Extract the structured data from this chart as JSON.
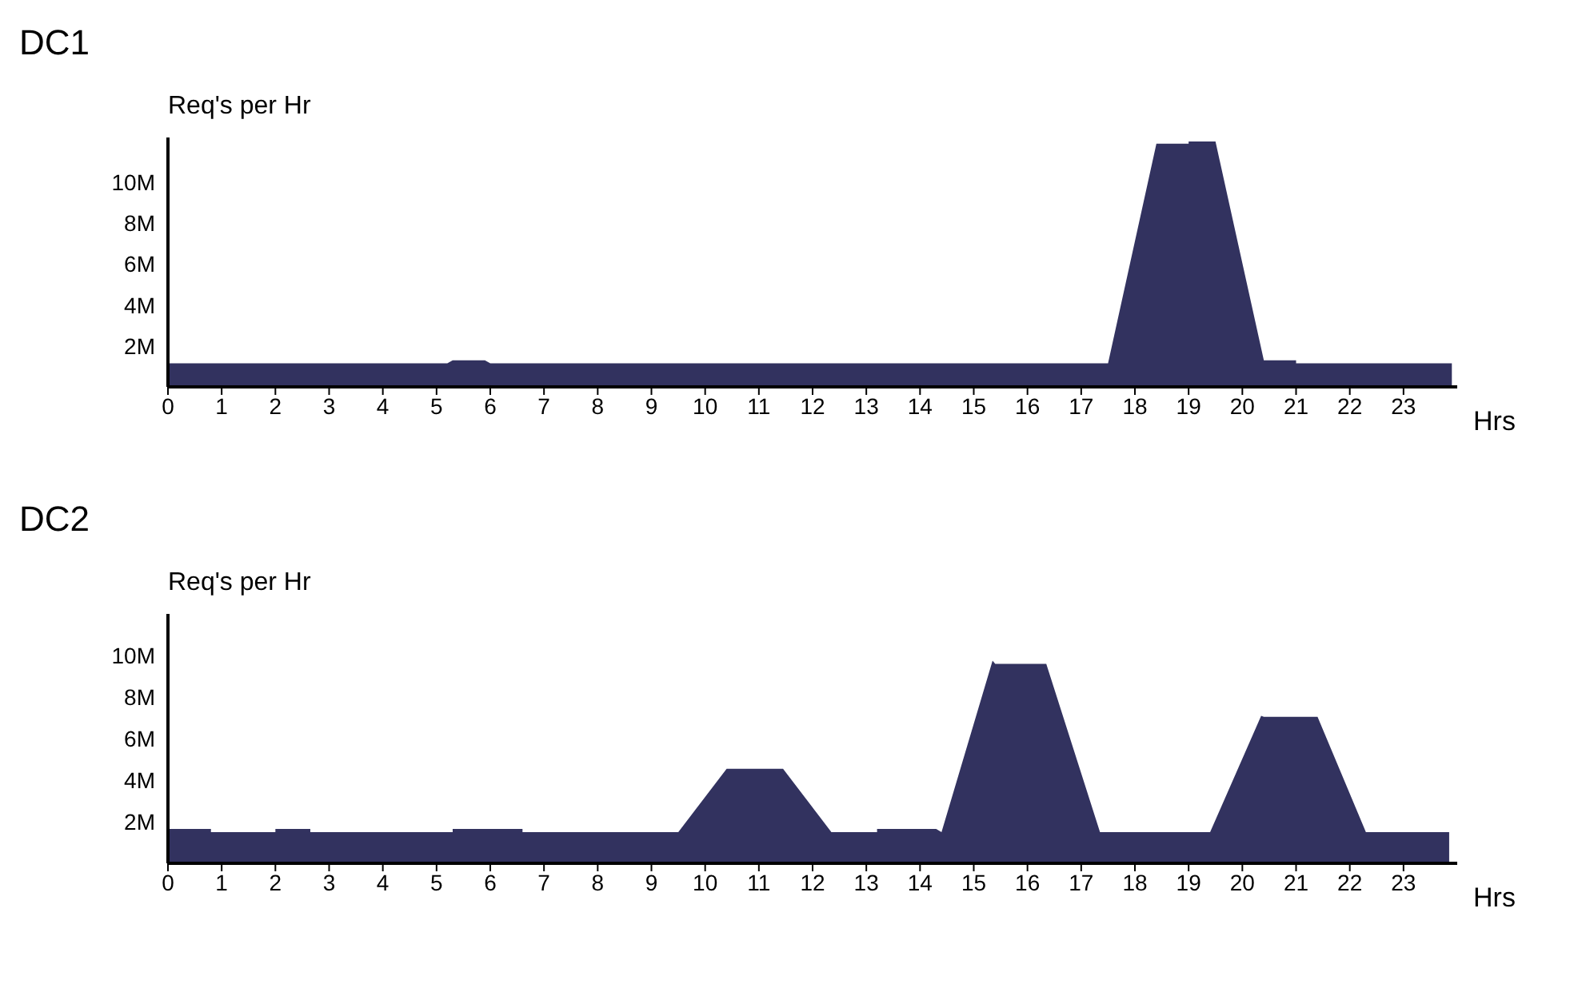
{
  "chart_data": [
    {
      "type": "area",
      "title": "DC1",
      "ylabel": "Req's per Hr",
      "xlabel": "Hrs",
      "color": "#32325f",
      "grid": false,
      "legend": false,
      "x": [
        0,
        5.2,
        5.3,
        5.9,
        6.0,
        17.5,
        18.4,
        19.0,
        19.0,
        19.5,
        20.4,
        21.0,
        21.0,
        23.9
      ],
      "values": [
        1.15,
        1.15,
        1.3,
        1.3,
        1.15,
        1.15,
        11.9,
        11.9,
        12.0,
        12.0,
        1.3,
        1.3,
        1.15,
        1.15
      ],
      "xlim": [
        0,
        24
      ],
      "xticks": [
        0,
        1,
        2,
        3,
        4,
        5,
        6,
        7,
        8,
        9,
        10,
        11,
        12,
        13,
        14,
        15,
        16,
        17,
        18,
        19,
        20,
        21,
        22,
        23
      ],
      "ylim": [
        0,
        12.2
      ],
      "yticks": [
        {
          "value": 2,
          "label": "2M"
        },
        {
          "value": 4,
          "label": "4M"
        },
        {
          "value": 6,
          "label": "6M"
        },
        {
          "value": 8,
          "label": "8M"
        },
        {
          "value": 10,
          "label": "10M"
        }
      ]
    },
    {
      "type": "area",
      "title": "DC2",
      "ylabel": "Req's per Hr",
      "xlabel": "Hrs",
      "color": "#32325f",
      "grid": false,
      "legend": false,
      "x": [
        0,
        0.8,
        0.8,
        2.0,
        2.0,
        2.65,
        2.65,
        5.3,
        5.3,
        6.6,
        6.6,
        9.5,
        10.4,
        11.45,
        12.35,
        13.2,
        13.2,
        14.3,
        14.4,
        15.35,
        15.4,
        16.35,
        17.35,
        19.4,
        20.35,
        20.4,
        21.4,
        22.3,
        23.85
      ],
      "values": [
        1.65,
        1.65,
        1.5,
        1.5,
        1.65,
        1.65,
        1.5,
        1.5,
        1.65,
        1.65,
        1.5,
        1.5,
        4.55,
        4.55,
        1.5,
        1.5,
        1.65,
        1.65,
        1.5,
        9.75,
        9.6,
        9.6,
        1.5,
        1.5,
        7.1,
        7.05,
        7.05,
        1.5,
        1.5
      ],
      "xlim": [
        0,
        24
      ],
      "xticks": [
        0,
        1,
        2,
        3,
        4,
        5,
        6,
        7,
        8,
        9,
        10,
        11,
        12,
        13,
        14,
        15,
        16,
        17,
        18,
        19,
        20,
        21,
        22,
        23
      ],
      "ylim": [
        0,
        12
      ],
      "yticks": [
        {
          "value": 2,
          "label": "2M"
        },
        {
          "value": 4,
          "label": "4M"
        },
        {
          "value": 6,
          "label": "6M"
        },
        {
          "value": 8,
          "label": "8M"
        },
        {
          "value": 10,
          "label": "10M"
        }
      ]
    }
  ]
}
